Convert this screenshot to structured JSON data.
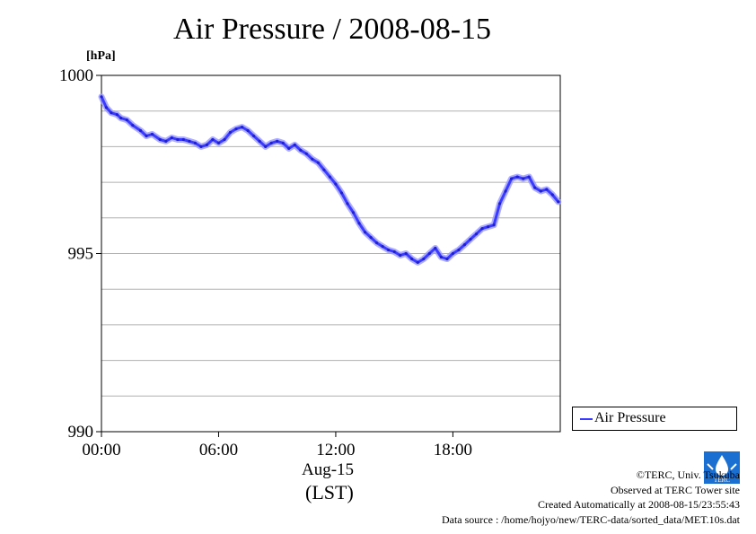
{
  "chart_data": {
    "type": "line",
    "title": "Air Pressure / 2008-08-15",
    "unit": "[hPa]",
    "xlabel": "(LST)",
    "x_date_label": "Aug-15",
    "x_ticks": [
      "00:00",
      "06:00",
      "12:00",
      "18:00"
    ],
    "y_ticks": [
      "1000",
      "995",
      "990"
    ],
    "ylim": [
      990,
      1000
    ],
    "xlim_hours": [
      0,
      23.5
    ],
    "grid": true,
    "legend_position": "right-bottom",
    "series": [
      {
        "name": "Air Pressure",
        "color": "#3b3bff",
        "x_hours": [
          0.0,
          0.25,
          0.5,
          0.8,
          1.0,
          1.3,
          1.6,
          2.0,
          2.3,
          2.6,
          3.0,
          3.3,
          3.6,
          3.9,
          4.2,
          4.5,
          4.8,
          5.1,
          5.4,
          5.7,
          6.0,
          6.3,
          6.6,
          6.9,
          7.2,
          7.5,
          7.8,
          8.1,
          8.4,
          8.7,
          9.0,
          9.3,
          9.6,
          9.9,
          10.2,
          10.5,
          10.8,
          11.1,
          11.4,
          11.7,
          12.0,
          12.3,
          12.6,
          12.9,
          13.2,
          13.5,
          13.8,
          14.1,
          14.4,
          14.7,
          15.0,
          15.3,
          15.6,
          15.9,
          16.2,
          16.5,
          16.8,
          17.1,
          17.4,
          17.7,
          18.0,
          18.3,
          18.6,
          18.9,
          19.2,
          19.5,
          19.8,
          20.1,
          20.4,
          20.7,
          21.0,
          21.3,
          21.6,
          21.9,
          22.2,
          22.5,
          22.8,
          23.1,
          23.4
        ],
        "values": [
          999.4,
          999.1,
          998.95,
          998.9,
          998.8,
          998.75,
          998.6,
          998.45,
          998.3,
          998.35,
          998.2,
          998.15,
          998.25,
          998.2,
          998.2,
          998.15,
          998.1,
          998.0,
          998.05,
          998.2,
          998.1,
          998.2,
          998.4,
          998.5,
          998.55,
          998.45,
          998.3,
          998.15,
          998.0,
          998.1,
          998.15,
          998.1,
          997.95,
          998.05,
          997.9,
          997.8,
          997.65,
          997.55,
          997.35,
          997.15,
          996.95,
          996.7,
          996.4,
          996.15,
          995.85,
          995.6,
          995.45,
          995.3,
          995.2,
          995.1,
          995.05,
          994.95,
          995.0,
          994.85,
          994.75,
          994.85,
          995.0,
          995.15,
          994.9,
          994.85,
          995.0,
          995.1,
          995.25,
          995.4,
          995.55,
          995.7,
          995.75,
          995.8,
          996.4,
          996.75,
          997.1,
          997.15,
          997.1,
          997.15,
          996.85,
          996.75,
          996.8,
          996.65,
          996.45
        ]
      }
    ]
  },
  "credits": {
    "line1": "©TERC, Univ. Tsukuba",
    "line2": "Observed at TERC Tower site",
    "line3": "Created Automatically at 2008-08-15/23:55:43",
    "line4": "Data source : /home/hojyo/new/TERC-data/sorted_data/MET.10s.dat"
  },
  "logo_text": "TERC"
}
